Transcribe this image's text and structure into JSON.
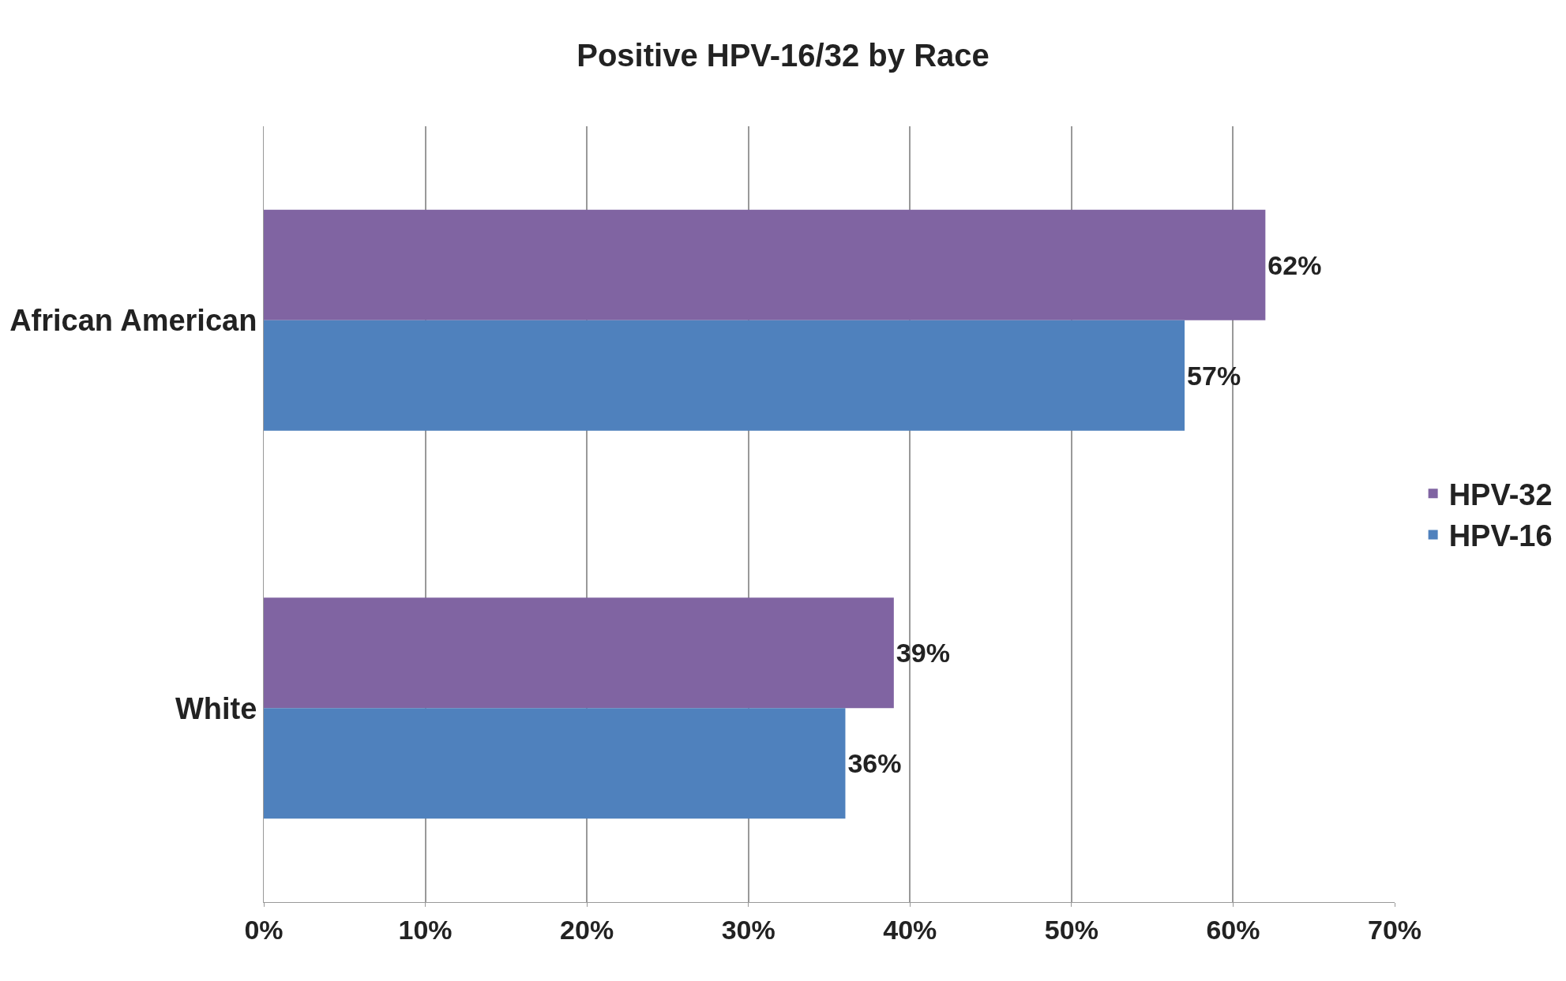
{
  "chart_data": {
    "type": "bar",
    "orientation": "horizontal",
    "title": "Positive HPV-16/32 by Race",
    "categories": [
      "African American",
      "White"
    ],
    "series": [
      {
        "name": "HPV-32",
        "color": "#8064a2",
        "values": [
          62,
          39
        ],
        "value_labels": [
          "62%",
          "39%"
        ]
      },
      {
        "name": "HPV-16",
        "color": "#4f81bd",
        "values": [
          57,
          36
        ],
        "value_labels": [
          "57%",
          "36%"
        ]
      }
    ],
    "xlim": [
      0,
      70
    ],
    "xticks": [
      {
        "value": 0,
        "label": "0%"
      },
      {
        "value": 10,
        "label": "10%"
      },
      {
        "value": 20,
        "label": "20%"
      },
      {
        "value": 30,
        "label": "30%"
      },
      {
        "value": 40,
        "label": "40%"
      },
      {
        "value": 50,
        "label": "50%"
      },
      {
        "value": 60,
        "label": "60%"
      },
      {
        "value": 70,
        "label": "70%"
      }
    ],
    "grid": "x",
    "legend": "right"
  }
}
